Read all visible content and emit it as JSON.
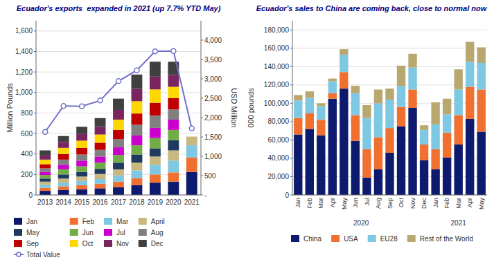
{
  "chart_data": [
    {
      "type": "bar",
      "stacked": true,
      "grid": true,
      "legend": "bottom",
      "title": "Ecuador's exports  expanded in 2021 (up 7.7% YTD May)",
      "y_label": "Million Pounds",
      "y2_label": "USD Million",
      "categories": [
        "2013",
        "2014",
        "2015",
        "2016",
        "2017",
        "2018",
        "2019",
        "2020",
        "2021"
      ],
      "ylim": [
        0,
        1700
      ],
      "yticks": [
        0,
        200,
        400,
        600,
        800,
        {
          "value": 1000,
          "label": "1,000"
        },
        {
          "value": 1200,
          "label": "1,200"
        },
        {
          "value": 1400,
          "label": "1,400"
        },
        {
          "value": 1600,
          "label": "1,600"
        }
      ],
      "y2lim": [
        0,
        4500
      ],
      "y2ticks": [
        {
          "value": 0,
          "label": "-"
        },
        500,
        {
          "value": 1000,
          "label": "1,000"
        },
        {
          "value": 1500,
          "label": "1,500"
        },
        {
          "value": 2000,
          "label": "2,000"
        },
        {
          "value": 2500,
          "label": "2,500"
        },
        {
          "value": 3000,
          "label": "3,000"
        },
        {
          "value": 3500,
          "label": "3,500"
        },
        {
          "value": 4000,
          "label": "4,000"
        }
      ],
      "series": [
        {
          "name": "Jan",
          "type": "bar",
          "color": "#0d1a6e",
          "values": [
            40,
            50,
            55,
            65,
            75,
            95,
            120,
            130,
            225
          ]
        },
        {
          "name": "Feb",
          "type": "bar",
          "color": "#f07030",
          "values": [
            30,
            35,
            40,
            45,
            55,
            70,
            80,
            90,
            140
          ]
        },
        {
          "name": "Mar",
          "type": "bar",
          "color": "#7ec8e3",
          "values": [
            30,
            35,
            40,
            45,
            60,
            75,
            95,
            115,
            120
          ]
        },
        {
          "name": "April",
          "type": "bar",
          "color": "#c8b880",
          "values": [
            30,
            40,
            45,
            50,
            60,
            75,
            80,
            100,
            85
          ]
        },
        {
          "name": "May",
          "type": "bar",
          "color": "#1e3a5f",
          "values": [
            30,
            40,
            45,
            50,
            65,
            80,
            80,
            100,
            0
          ]
        },
        {
          "name": "Jun",
          "type": "bar",
          "color": "#70ad47",
          "values": [
            35,
            50,
            55,
            60,
            75,
            90,
            100,
            100,
            0
          ]
        },
        {
          "name": "Jul",
          "type": "bar",
          "color": "#cc00cc",
          "values": [
            30,
            45,
            55,
            60,
            75,
            95,
            100,
            100,
            0
          ]
        },
        {
          "name": "Aug",
          "type": "bar",
          "color": "#808080",
          "values": [
            35,
            50,
            60,
            65,
            80,
            105,
            120,
            100,
            0
          ]
        },
        {
          "name": "Sep",
          "type": "bar",
          "color": "#c00000",
          "values": [
            40,
            55,
            65,
            70,
            90,
            110,
            125,
            110,
            0
          ]
        },
        {
          "name": "Oct",
          "type": "bar",
          "color": "#ffd700",
          "values": [
            45,
            60,
            70,
            80,
            100,
            120,
            130,
            110,
            0
          ]
        },
        {
          "name": "Nov",
          "type": "bar",
          "color": "#7b2560",
          "values": [
            40,
            55,
            65,
            75,
            95,
            120,
            125,
            115,
            0
          ]
        },
        {
          "name": "Dec",
          "type": "bar",
          "color": "#404040",
          "values": [
            50,
            60,
            70,
            85,
            110,
            140,
            145,
            130,
            0
          ]
        },
        {
          "name": "Total Value",
          "type": "line",
          "axis": "y2",
          "color": "#7070cc",
          "marker": "circle",
          "values": [
            1630,
            2300,
            2290,
            2440,
            2940,
            3220,
            3710,
            3720,
            1720
          ]
        }
      ]
    },
    {
      "type": "bar",
      "stacked": true,
      "grid": true,
      "legend": "bottom",
      "title": "Ecuador's sales to China are coming back, close to normal now",
      "y_label": "000 pounds",
      "annotations": [
        "2020",
        "2021"
      ],
      "categories": [
        "Jan",
        "Feb",
        "Mar",
        "Apr",
        "May",
        "Jun",
        "Jul",
        "Aug",
        "Sep",
        "Oct",
        "Nov",
        "Dec",
        "Jan",
        "Feb",
        "Mar",
        "Apr",
        "May"
      ],
      "ylim": [
        0,
        190000
      ],
      "yticks": [
        0,
        {
          "value": 20000,
          "label": "20,000"
        },
        {
          "value": 40000,
          "label": "40,000"
        },
        {
          "value": 60000,
          "label": "60,000"
        },
        {
          "value": 80000,
          "label": "80,000"
        },
        {
          "value": 100000,
          "label": "100,000"
        },
        {
          "value": 120000,
          "label": "120,000"
        },
        {
          "value": 140000,
          "label": "140,000"
        },
        {
          "value": 160000,
          "label": "160,000"
        },
        {
          "value": 180000,
          "label": "180,000"
        }
      ],
      "series": [
        {
          "name": "China",
          "type": "bar",
          "color": "#0d1a6e",
          "values": [
            66000,
            72000,
            65000,
            105000,
            116000,
            59000,
            19000,
            28000,
            46000,
            75000,
            95000,
            38000,
            28000,
            41000,
            55000,
            83000,
            69000
          ]
        },
        {
          "name": "USA",
          "type": "bar",
          "color": "#f07030",
          "values": [
            18000,
            17000,
            17000,
            6000,
            18000,
            28000,
            31000,
            35000,
            27000,
            21000,
            20000,
            17000,
            22000,
            27000,
            32000,
            35000,
            46000
          ]
        },
        {
          "name": "EU28",
          "type": "bar",
          "color": "#7ec8e3",
          "values": [
            19000,
            17000,
            15000,
            13000,
            19000,
            24000,
            34000,
            37000,
            31000,
            23000,
            24000,
            16000,
            27000,
            20000,
            28000,
            27000,
            29000
          ]
        },
        {
          "name": "Rest of the World",
          "type": "bar",
          "color": "#b8a870",
          "values": [
            6000,
            7000,
            3000,
            3000,
            6000,
            8000,
            14000,
            15000,
            12000,
            22000,
            15000,
            5000,
            24000,
            17000,
            22000,
            22000,
            17000
          ]
        }
      ]
    }
  ]
}
